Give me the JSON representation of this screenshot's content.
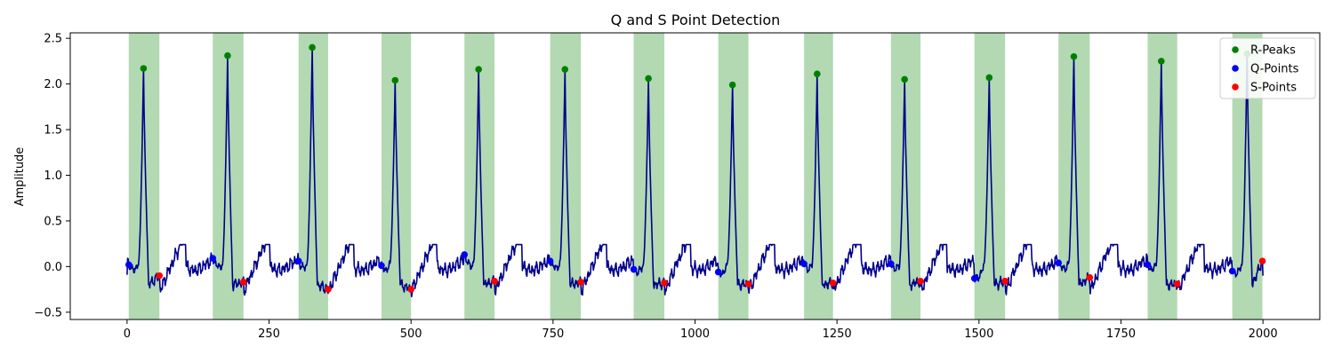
{
  "chart_data": {
    "type": "line",
    "title": "Q and S Point Detection",
    "xlabel": "",
    "ylabel": "Amplitude",
    "xlim": [
      -100,
      2100
    ],
    "ylim": [
      -0.58,
      2.56
    ],
    "xticks": [
      0,
      250,
      500,
      750,
      1000,
      1250,
      1500,
      1750,
      2000
    ],
    "yticks": [
      -0.5,
      0.0,
      0.5,
      1.0,
      1.5,
      2.0,
      2.5
    ],
    "xtick_labels": [
      "0",
      "250",
      "500",
      "750",
      "1000",
      "1250",
      "1500",
      "1750",
      "2000"
    ],
    "ytick_labels": [
      "−0.5",
      "0.0",
      "0.5",
      "1.0",
      "1.5",
      "2.0",
      "2.5"
    ],
    "grid": false,
    "legend_position": "top-right",
    "colors": {
      "signal": "#00008b",
      "r_peaks": "#008000",
      "q_points": "#0000ff",
      "s_points": "#ff0000",
      "region": "#008000"
    },
    "r_peaks": {
      "name": "R-Peaks",
      "x": [
        29,
        177,
        326,
        472,
        619,
        771,
        918,
        1066,
        1215,
        1369,
        1518,
        1667,
        1821,
        1972
      ],
      "y": [
        2.17,
        2.31,
        2.4,
        2.04,
        2.16,
        2.16,
        2.06,
        1.99,
        2.11,
        2.05,
        2.07,
        2.3,
        2.25,
        2.33
      ]
    },
    "q_points": {
      "name": "Q-Points",
      "x": [
        3,
        151,
        302,
        448,
        594,
        745,
        892,
        1041,
        1192,
        1345,
        1492,
        1640,
        1797,
        1946
      ],
      "y": [
        0.02,
        0.09,
        0.06,
        0.01,
        0.13,
        0.06,
        -0.03,
        -0.06,
        0.03,
        0.03,
        -0.13,
        0.04,
        0.02,
        -0.05
      ]
    },
    "s_points": {
      "name": "S-Points",
      "x": [
        57,
        205,
        354,
        500,
        647,
        799,
        946,
        1094,
        1243,
        1397,
        1546,
        1695,
        1849,
        1999
      ],
      "y": [
        -0.1,
        -0.17,
        -0.25,
        -0.25,
        -0.16,
        -0.17,
        -0.18,
        -0.19,
        -0.18,
        -0.16,
        -0.16,
        -0.12,
        -0.19,
        0.06
      ]
    },
    "qrs_regions": [
      [
        3,
        57
      ],
      [
        151,
        205
      ],
      [
        302,
        354
      ],
      [
        448,
        500
      ],
      [
        594,
        647
      ],
      [
        745,
        799
      ],
      [
        892,
        946
      ],
      [
        1041,
        1094
      ],
      [
        1192,
        1243
      ],
      [
        1345,
        1397
      ],
      [
        1492,
        1546
      ],
      [
        1640,
        1695
      ],
      [
        1797,
        1849
      ],
      [
        1946,
        1999
      ]
    ],
    "legend": [
      "R-Peaks",
      "Q-Points",
      "S-Points"
    ]
  }
}
